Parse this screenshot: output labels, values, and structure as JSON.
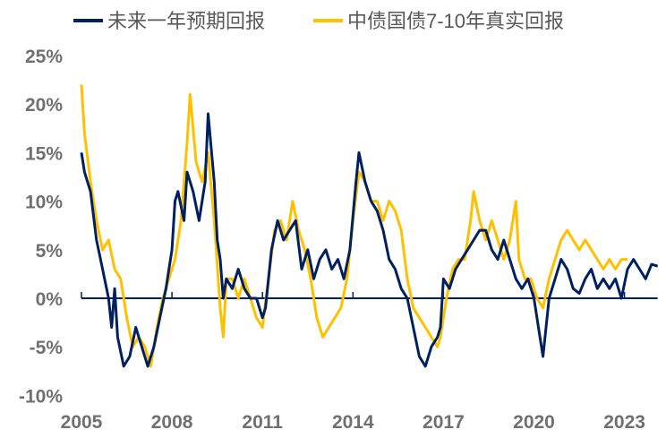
{
  "chart_data": {
    "type": "line",
    "title": "",
    "xlabel": "",
    "ylabel": "",
    "ylim": [
      -10,
      25
    ],
    "xlim": [
      2005,
      2024.1
    ],
    "y_ticks": [
      -10,
      -5,
      0,
      5,
      10,
      15,
      20,
      25
    ],
    "y_tick_labels": [
      "-10%",
      "-5%",
      "0%",
      "5%",
      "10%",
      "15%",
      "20%",
      "25%"
    ],
    "x_ticks": [
      2005,
      2008,
      2011,
      2014,
      2017,
      2020,
      2023
    ],
    "x_tick_labels": [
      "2005",
      "2008",
      "2011",
      "2014",
      "2017",
      "2020",
      "2023"
    ],
    "grid": false,
    "legend_position": "top-center",
    "series": [
      {
        "name": "未来一年预期回报",
        "color": "#002060",
        "x": [
          2005.0,
          2005.1,
          2005.3,
          2005.5,
          2005.7,
          2005.9,
          2006.0,
          2006.1,
          2006.2,
          2006.4,
          2006.6,
          2006.8,
          2007.0,
          2007.2,
          2007.4,
          2007.6,
          2007.8,
          2008.0,
          2008.1,
          2008.2,
          2008.4,
          2008.5,
          2008.7,
          2008.9,
          2009.1,
          2009.2,
          2009.4,
          2009.5,
          2009.6,
          2009.7,
          2009.8,
          2010.0,
          2010.2,
          2010.4,
          2010.6,
          2010.8,
          2011.0,
          2011.1,
          2011.3,
          2011.5,
          2011.7,
          2011.9,
          2012.1,
          2012.3,
          2012.5,
          2012.7,
          2012.9,
          2013.1,
          2013.3,
          2013.5,
          2013.7,
          2013.9,
          2014.1,
          2014.2,
          2014.4,
          2014.6,
          2014.8,
          2015.0,
          2015.2,
          2015.4,
          2015.6,
          2015.8,
          2016.0,
          2016.2,
          2016.4,
          2016.6,
          2016.8,
          2016.9,
          2017.0,
          2017.2,
          2017.4,
          2017.6,
          2017.8,
          2018.0,
          2018.2,
          2018.4,
          2018.6,
          2018.8,
          2019.0,
          2019.2,
          2019.4,
          2019.6,
          2019.8,
          2020.0,
          2020.2,
          2020.3,
          2020.5,
          2020.7,
          2020.9,
          2021.1,
          2021.3,
          2021.5,
          2021.7,
          2021.9,
          2022.1,
          2022.3,
          2022.5,
          2022.7,
          2022.9,
          2023.1,
          2023.3,
          2023.5,
          2023.7,
          2023.9,
          2024.1
        ],
        "values": [
          15,
          13,
          11,
          6,
          3,
          0,
          -3,
          1,
          -4,
          -7,
          -6,
          -3,
          -5,
          -7,
          -5,
          -2,
          1,
          5,
          10,
          11,
          8,
          13,
          11,
          8,
          12,
          19,
          12,
          6,
          4,
          0,
          2,
          1,
          3,
          1,
          0,
          0,
          -2,
          -1,
          5,
          8,
          6,
          7,
          8,
          3,
          5,
          2,
          4,
          5,
          3,
          4,
          2,
          5,
          12,
          15,
          12,
          10,
          9,
          7,
          4,
          3,
          1,
          0,
          -3,
          -6,
          -7,
          -5,
          -4,
          -3,
          2,
          1,
          3,
          4,
          5,
          6,
          7,
          7,
          5,
          4,
          6,
          4,
          2,
          1,
          2,
          0,
          -4,
          -6,
          0,
          2,
          4,
          3,
          1,
          0.5,
          2,
          3,
          1,
          2,
          1,
          2,
          0,
          3,
          4,
          3,
          2,
          3.5,
          3.3
        ]
      },
      {
        "name": "中债国债7-10年真实回报",
        "color": "#FFC000",
        "x": [
          2005.0,
          2005.1,
          2005.3,
          2005.5,
          2005.7,
          2005.9,
          2006.1,
          2006.3,
          2006.5,
          2006.7,
          2006.9,
          2007.1,
          2007.3,
          2007.5,
          2007.7,
          2007.9,
          2008.1,
          2008.3,
          2008.5,
          2008.6,
          2008.8,
          2009.0,
          2009.2,
          2009.4,
          2009.6,
          2009.7,
          2009.8,
          2010.0,
          2010.2,
          2010.4,
          2010.6,
          2010.8,
          2011.0,
          2011.2,
          2011.4,
          2011.6,
          2011.8,
          2012.0,
          2012.2,
          2012.4,
          2012.6,
          2012.8,
          2013.0,
          2013.2,
          2013.4,
          2013.6,
          2013.8,
          2014.0,
          2014.2,
          2014.4,
          2014.6,
          2014.8,
          2015.0,
          2015.2,
          2015.4,
          2015.6,
          2015.8,
          2016.0,
          2016.2,
          2016.4,
          2016.6,
          2016.8,
          2016.9,
          2017.1,
          2017.3,
          2017.5,
          2017.7,
          2017.9,
          2018.0,
          2018.2,
          2018.4,
          2018.6,
          2018.8,
          2019.0,
          2019.2,
          2019.4,
          2019.5,
          2019.7,
          2019.9,
          2020.1,
          2020.3,
          2020.5,
          2020.7,
          2020.9,
          2021.1,
          2021.3,
          2021.5,
          2021.7,
          2021.9,
          2022.1,
          2022.3,
          2022.5,
          2022.7,
          2022.9,
          2023.1
        ],
        "values": [
          22,
          17,
          12,
          8,
          5,
          6,
          3,
          2,
          -2,
          -5,
          -4,
          -5,
          -7,
          -3,
          0,
          2,
          4,
          8,
          16,
          21,
          14,
          12,
          15,
          8,
          -1,
          -4,
          2,
          2,
          0,
          2,
          0,
          -2,
          -3,
          2,
          7,
          8,
          6,
          10,
          7,
          5,
          2,
          -2,
          -4,
          -3,
          -2,
          -1,
          2,
          8,
          13,
          12,
          10,
          10,
          8,
          10,
          9,
          7,
          2,
          -1,
          -2,
          -3,
          -4,
          -5,
          -4,
          0,
          3,
          4,
          4,
          8,
          11,
          8,
          6,
          8,
          6,
          4,
          6,
          10,
          4,
          2,
          2,
          0,
          -1,
          2,
          4,
          6,
          7,
          6,
          5,
          6,
          5,
          4,
          3,
          4,
          3,
          4,
          4
        ]
      }
    ]
  }
}
